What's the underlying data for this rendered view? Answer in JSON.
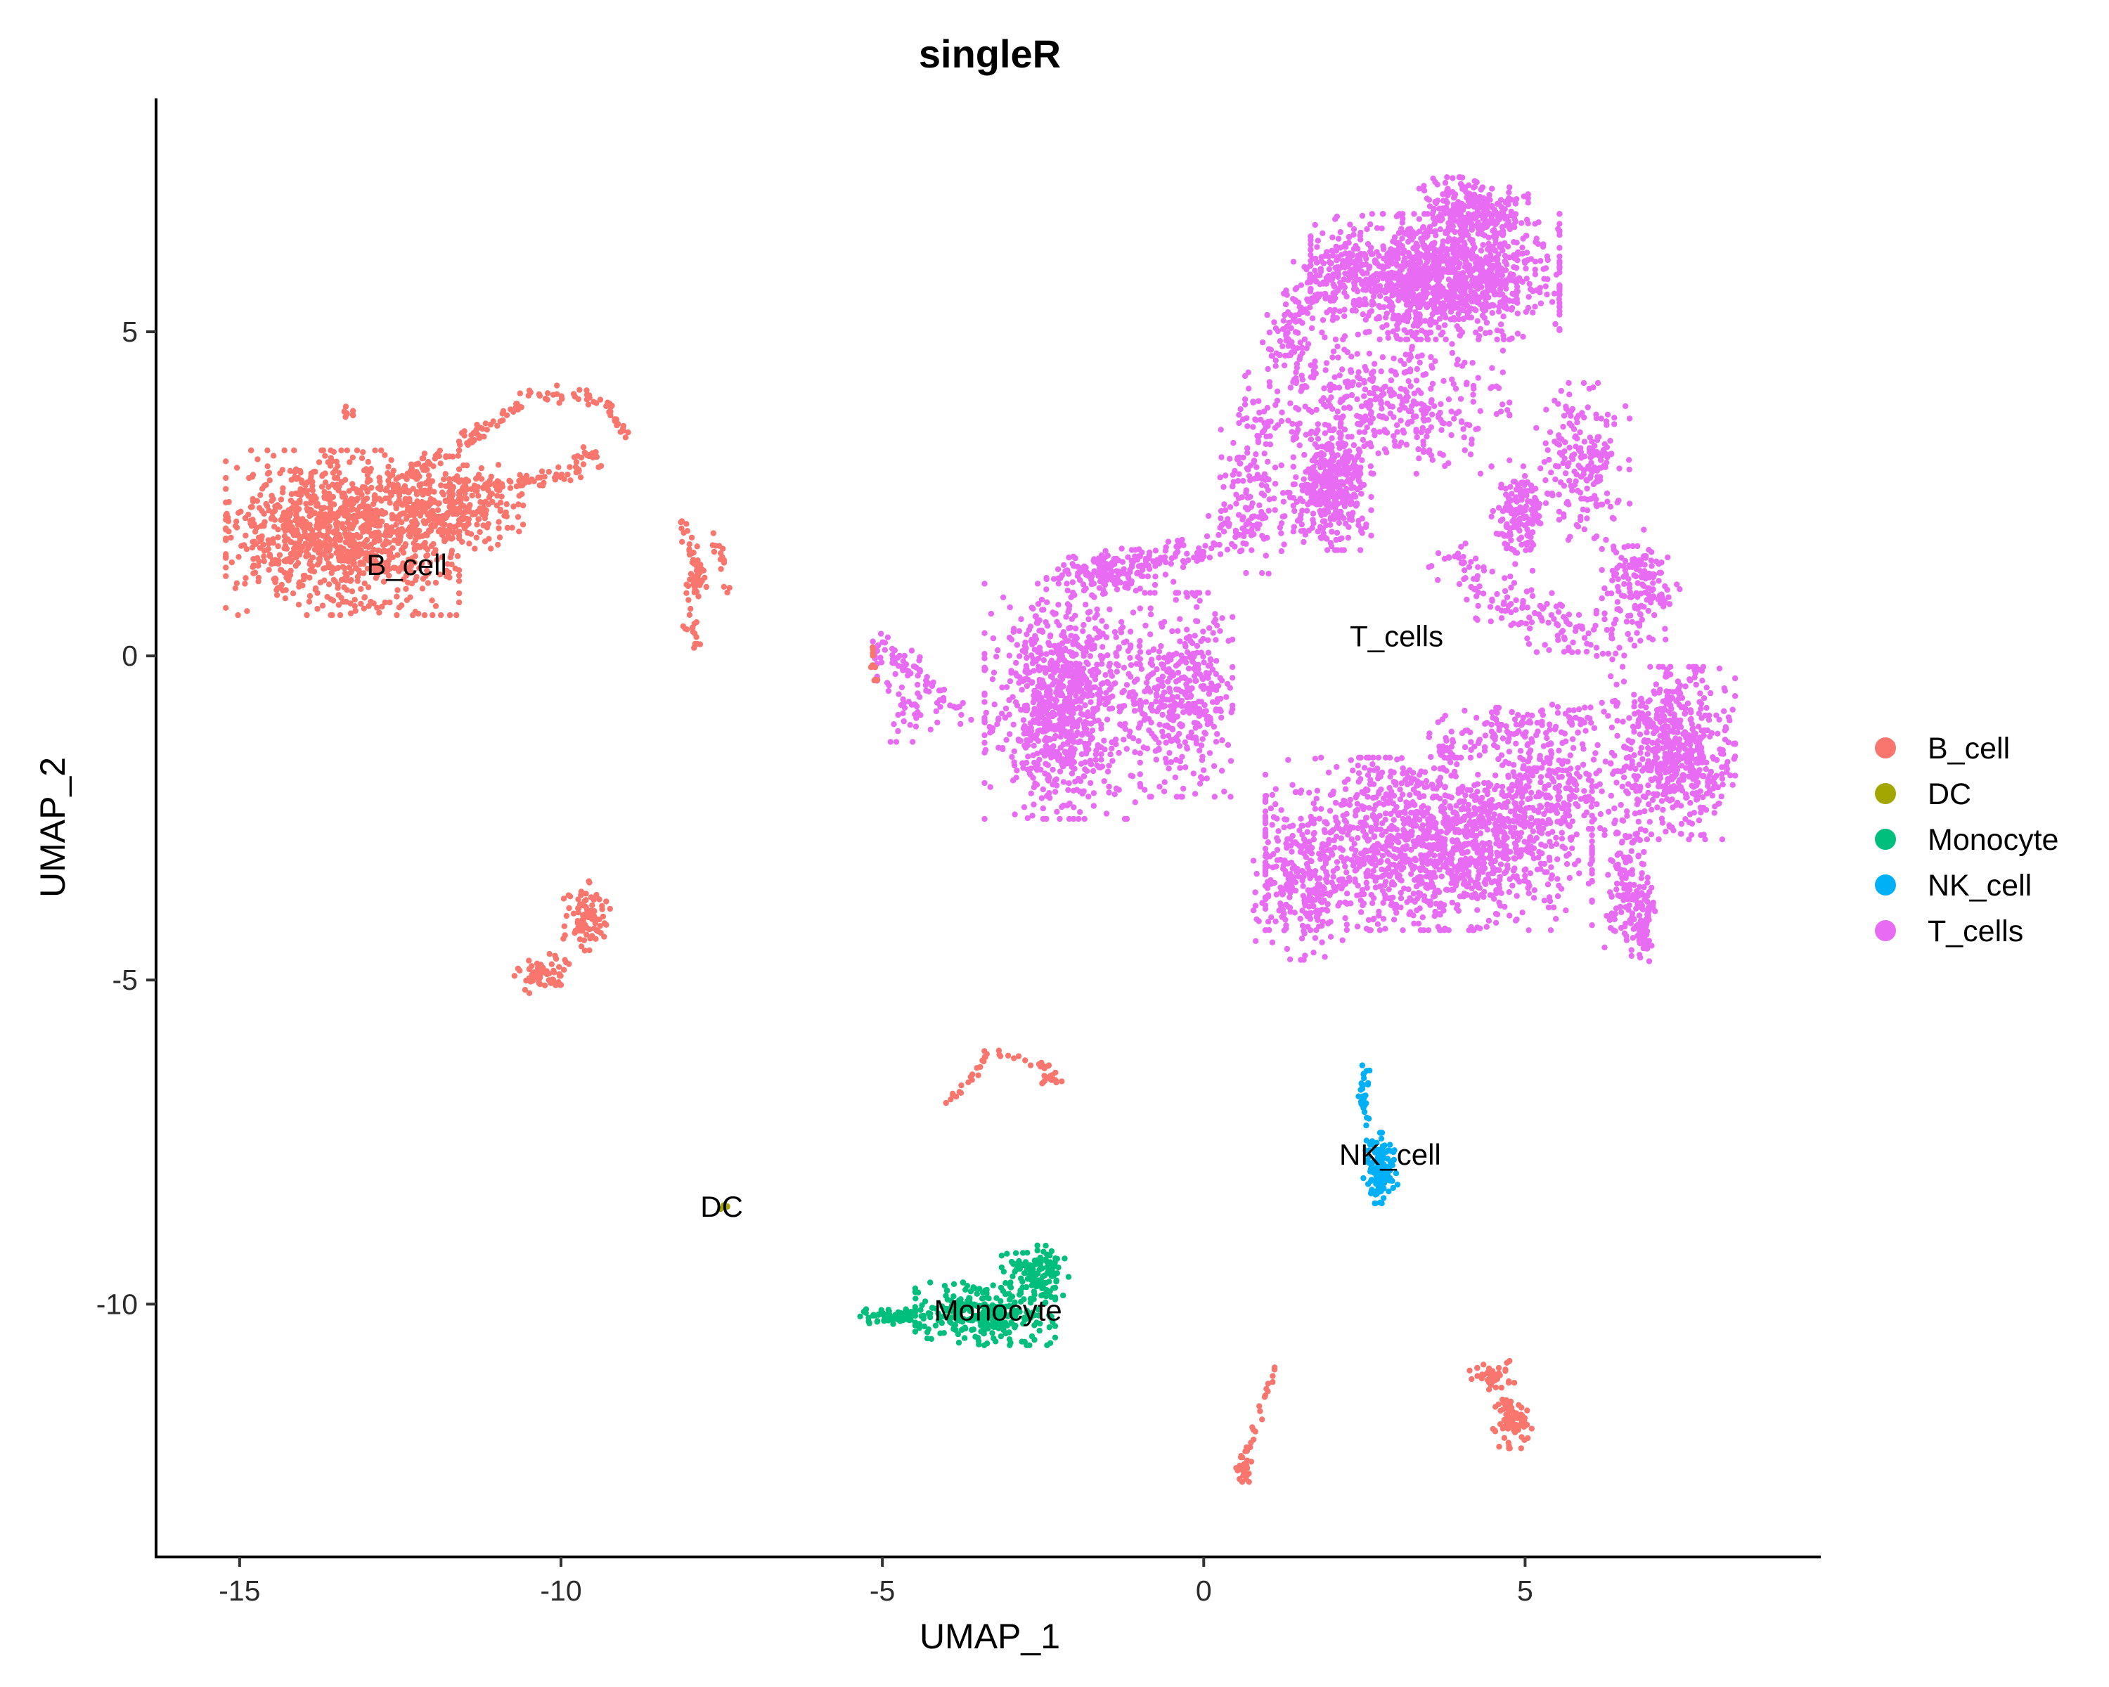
{
  "chart_data": {
    "type": "scatter",
    "title": "singleR",
    "xlabel": "UMAP_1",
    "ylabel": "UMAP_2",
    "xlim": [
      -16.3,
      9.6
    ],
    "ylim": [
      -13.9,
      8.6
    ],
    "xticks": [
      -15,
      -10,
      -5,
      0,
      5
    ],
    "yticks": [
      5,
      0,
      -5,
      -10
    ],
    "grid": false,
    "legend_position": "right",
    "series": [
      {
        "name": "B_cell",
        "color": "#F8766D"
      },
      {
        "name": "DC",
        "color": "#A3A500"
      },
      {
        "name": "Monocyte",
        "color": "#00BF7D"
      },
      {
        "name": "NK_cell",
        "color": "#00B0F6"
      },
      {
        "name": "T_cells",
        "color": "#E76BF3"
      }
    ],
    "cluster_labels": [
      {
        "text": "B_cell",
        "x": -12.4,
        "y": 1.4
      },
      {
        "text": "T_cells",
        "x": 3.0,
        "y": 0.3
      },
      {
        "text": "NK_cell",
        "x": 2.9,
        "y": -7.7
      },
      {
        "text": "DC",
        "x": -7.5,
        "y": -8.5
      },
      {
        "text": "Monocyte",
        "x": -3.2,
        "y": -10.1
      }
    ],
    "regions": [
      {
        "series": "B_cell",
        "cx": -13.4,
        "cy": 1.9,
        "rx": 1.5,
        "ry": 1.05,
        "n": 1100
      },
      {
        "series": "B_cell",
        "cx": -11.8,
        "cy": 2.3,
        "rx": 1.0,
        "ry": 0.55,
        "n": 280
      },
      {
        "series": "B_cell",
        "cx": -13.3,
        "cy": 3.75,
        "rx": 0.12,
        "ry": 0.08,
        "n": 10
      },
      {
        "series": "B_cell",
        "cx": -9.55,
        "cy": 3.1,
        "rx": 0.2,
        "ry": 0.18,
        "n": 20
      },
      {
        "series": "B_cell",
        "cx": -7.85,
        "cy": 1.15,
        "rx": 0.15,
        "ry": 0.2,
        "n": 18
      },
      {
        "series": "B_cell",
        "cx": -9.6,
        "cy": -4.05,
        "rx": 0.3,
        "ry": 0.5,
        "n": 90
      },
      {
        "series": "B_cell",
        "cx": -10.3,
        "cy": -4.9,
        "rx": 0.35,
        "ry": 0.25,
        "n": 70
      },
      {
        "series": "B_cell",
        "cx": 4.8,
        "cy": -11.8,
        "rx": 0.25,
        "ry": 0.35,
        "n": 80
      },
      {
        "series": "B_cell",
        "cx": 4.5,
        "cy": -11.1,
        "rx": 0.3,
        "ry": 0.2,
        "n": 50
      },
      {
        "series": "B_cell",
        "cx": 0.65,
        "cy": -12.5,
        "rx": 0.12,
        "ry": 0.2,
        "n": 22
      },
      {
        "series": "B_cell",
        "cx": -2.4,
        "cy": -6.5,
        "rx": 0.15,
        "ry": 0.08,
        "n": 12
      },
      {
        "series": "DC",
        "cx": -7.45,
        "cy": -8.5,
        "rx": 0.08,
        "ry": 0.08,
        "n": 6
      },
      {
        "series": "Monocyte",
        "cx": -3.4,
        "cy": -10.15,
        "rx": 0.9,
        "ry": 0.4,
        "n": 300
      },
      {
        "series": "Monocyte",
        "cx": -2.6,
        "cy": -9.5,
        "rx": 0.45,
        "ry": 0.35,
        "n": 120
      },
      {
        "series": "Monocyte",
        "cx": -4.8,
        "cy": -10.2,
        "rx": 0.45,
        "ry": 0.1,
        "n": 70
      },
      {
        "series": "NK_cell",
        "cx": 2.75,
        "cy": -7.9,
        "rx": 0.22,
        "ry": 0.45,
        "n": 130
      },
      {
        "series": "NK_cell",
        "cx": 2.5,
        "cy": -6.8,
        "rx": 0.08,
        "ry": 0.4,
        "n": 30
      },
      {
        "series": "T_cells",
        "cx": 3.6,
        "cy": 5.85,
        "rx": 1.6,
        "ry": 0.8,
        "n": 1300
      },
      {
        "series": "T_cells",
        "cx": 4.2,
        "cy": 6.9,
        "rx": 0.7,
        "ry": 0.4,
        "n": 250
      },
      {
        "series": "T_cells",
        "cx": 2.0,
        "cy": 2.6,
        "rx": 0.5,
        "ry": 0.8,
        "n": 380
      },
      {
        "series": "T_cells",
        "cx": 2.7,
        "cy": 3.9,
        "rx": 1.7,
        "ry": 0.9,
        "n": 420
      },
      {
        "series": "T_cells",
        "cx": 4.9,
        "cy": 2.2,
        "rx": 0.35,
        "ry": 0.6,
        "n": 150
      },
      {
        "series": "T_cells",
        "cx": 5.9,
        "cy": 3.0,
        "rx": 0.6,
        "ry": 1.0,
        "n": 200
      },
      {
        "series": "T_cells",
        "cx": 6.8,
        "cy": 1.1,
        "rx": 0.5,
        "ry": 0.7,
        "n": 150
      },
      {
        "series": "T_cells",
        "cx": -2.2,
        "cy": -0.7,
        "rx": 1.0,
        "ry": 1.5,
        "n": 900
      },
      {
        "series": "T_cells",
        "cx": -0.4,
        "cy": -0.6,
        "rx": 0.7,
        "ry": 1.3,
        "n": 400
      },
      {
        "series": "T_cells",
        "cx": -1.6,
        "cy": 1.3,
        "rx": 0.7,
        "ry": 0.3,
        "n": 120
      },
      {
        "series": "T_cells",
        "cx": 3.5,
        "cy": -2.9,
        "rx": 2.1,
        "ry": 1.1,
        "n": 1400
      },
      {
        "series": "T_cells",
        "cx": 7.3,
        "cy": -1.5,
        "rx": 0.8,
        "ry": 1.1,
        "n": 600
      },
      {
        "series": "T_cells",
        "cx": 6.6,
        "cy": -3.5,
        "rx": 0.3,
        "ry": 1.0,
        "n": 150
      },
      {
        "series": "T_cells",
        "cx": 5.3,
        "cy": -2.0,
        "rx": 0.9,
        "ry": 0.8,
        "n": 250
      },
      {
        "series": "T_cells",
        "cx": 0.8,
        "cy": 2.6,
        "rx": 0.6,
        "ry": 1.1,
        "n": 150
      },
      {
        "series": "T_cells",
        "cx": 1.5,
        "cy": -3.6,
        "rx": 0.6,
        "ry": 0.9,
        "n": 200
      },
      {
        "series": "T_cells",
        "cx": -4.6,
        "cy": -0.6,
        "rx": 0.4,
        "ry": 0.6,
        "n": 50
      },
      {
        "series": "T_cells",
        "cx": -5.0,
        "cy": 0.1,
        "rx": 0.2,
        "ry": 0.2,
        "n": 15
      }
    ],
    "paths": [
      {
        "series": "B_cell",
        "points": [
          [
            -11.5,
            2.6
          ],
          [
            -10.5,
            2.7
          ],
          [
            -9.5,
            2.9
          ]
        ],
        "spread": 0.12,
        "n": 70
      },
      {
        "series": "B_cell",
        "points": [
          [
            -12.5,
            2.7
          ],
          [
            -11.3,
            3.4
          ],
          [
            -10.5,
            4.0
          ],
          [
            -9.9,
            4.0
          ]
        ],
        "spread": 0.1,
        "n": 90
      },
      {
        "series": "B_cell",
        "points": [
          [
            -9.8,
            4.05
          ],
          [
            -9.3,
            3.9
          ],
          [
            -9.0,
            3.4
          ]
        ],
        "spread": 0.08,
        "n": 35
      },
      {
        "series": "B_cell",
        "points": [
          [
            -8.1,
            2.0
          ],
          [
            -7.9,
            1.4
          ],
          [
            -8.0,
            0.6
          ],
          [
            -7.9,
            0.1
          ]
        ],
        "spread": 0.1,
        "n": 55
      },
      {
        "series": "B_cell",
        "points": [
          [
            -7.6,
            1.9
          ],
          [
            -7.4,
            1.0
          ]
        ],
        "spread": 0.06,
        "n": 15
      },
      {
        "series": "B_cell",
        "points": [
          [
            -4.0,
            -6.9
          ],
          [
            -3.3,
            -6.1
          ],
          [
            -2.5,
            -6.3
          ],
          [
            -2.1,
            -6.6
          ]
        ],
        "spread": 0.07,
        "n": 40
      },
      {
        "series": "B_cell",
        "points": [
          [
            0.55,
            -12.7
          ],
          [
            0.9,
            -11.6
          ],
          [
            1.2,
            -10.8
          ]
        ],
        "spread": 0.05,
        "n": 22
      },
      {
        "series": "B_cell",
        "points": [
          [
            -5.2,
            0.2
          ],
          [
            -5.1,
            -0.4
          ]
        ],
        "spread": 0.06,
        "n": 12
      },
      {
        "series": "T_cells",
        "points": [
          [
            -5.0,
            0.1
          ],
          [
            -4.3,
            -0.4
          ],
          [
            -3.7,
            -1.0
          ]
        ],
        "spread": 0.15,
        "n": 45
      },
      {
        "series": "T_cells",
        "points": [
          [
            -1.5,
            1.3
          ],
          [
            0.1,
            1.7
          ],
          [
            0.8,
            2.1
          ]
        ],
        "spread": 0.25,
        "n": 120
      },
      {
        "series": "T_cells",
        "points": [
          [
            1.2,
            4.5
          ],
          [
            1.5,
            5.5
          ],
          [
            2.3,
            6.1
          ]
        ],
        "spread": 0.3,
        "n": 150
      },
      {
        "series": "T_cells",
        "points": [
          [
            3.8,
            1.5
          ],
          [
            5.1,
            0.6
          ],
          [
            6.4,
            0.2
          ]
        ],
        "spread": 0.35,
        "n": 160
      },
      {
        "series": "T_cells",
        "points": [
          [
            3.5,
            -1.5
          ],
          [
            5.0,
            -1.0
          ],
          [
            6.5,
            -1.0
          ]
        ],
        "spread": 0.3,
        "n": 140
      },
      {
        "series": "T_cells",
        "points": [
          [
            6.9,
            -3.7
          ],
          [
            6.8,
            -4.5
          ]
        ],
        "spread": 0.12,
        "n": 60
      }
    ]
  }
}
